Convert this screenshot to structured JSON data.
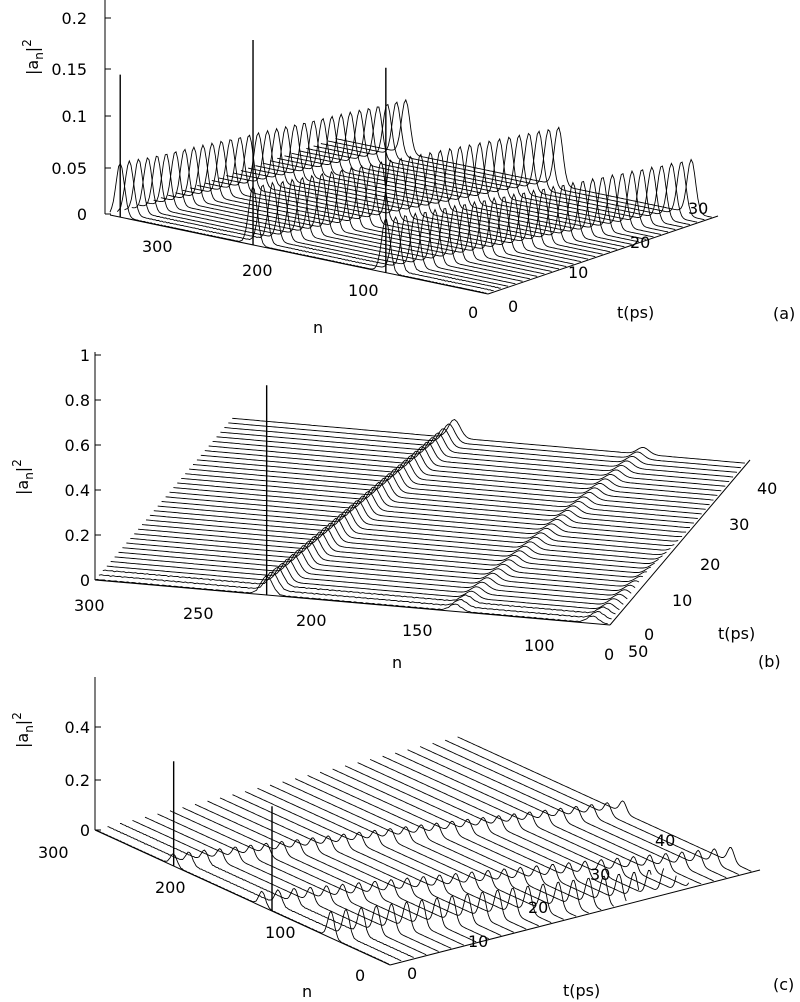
{
  "chart_data": [
    {
      "panel": "(a)",
      "type": "waterfall",
      "zlabel": "|a_n|^2",
      "nlabel": "n",
      "tlabel": "t(ps)",
      "z_ticks": [
        "0",
        "0.05",
        "0.1",
        "0.15",
        "0.2"
      ],
      "n_ticks": [
        "300",
        "200",
        "100",
        "0"
      ],
      "t_ticks": [
        "0",
        "10",
        "20",
        "30"
      ],
      "zlim": [
        0,
        0.22
      ],
      "nlim": [
        0,
        370
      ],
      "tlim": [
        0,
        38
      ],
      "num_traces": 32,
      "peak_ridges": [
        {
          "n_start": 360,
          "n_end": 300,
          "height": 0.06
        },
        {
          "n_start": 230,
          "n_end": 150,
          "height": 0.065
        },
        {
          "n_start": 100,
          "n_end": 20,
          "height": 0.06
        }
      ],
      "spikes_t0": [
        {
          "n": 360,
          "height": 0.16
        },
        {
          "n": 230,
          "height": 0.23
        },
        {
          "n": 100,
          "height": 0.23
        }
      ]
    },
    {
      "panel": "(b)",
      "type": "waterfall",
      "zlabel": "|a_n|^2",
      "nlabel": "n",
      "tlabel": "t(ps)",
      "z_ticks": [
        "0",
        "0.2",
        "0.4",
        "0.6",
        "0.8",
        "1"
      ],
      "n_ticks": [
        "300",
        "250",
        "200",
        "150",
        "100",
        "50",
        "0"
      ],
      "t_ticks": [
        "0",
        "10",
        "20",
        "30",
        "40"
      ],
      "zlim": [
        0,
        1
      ],
      "nlim": [
        0,
        300
      ],
      "tlim": [
        0,
        40
      ],
      "num_traces": 36,
      "peak_ridges": [
        {
          "n_start": 200,
          "n_end": 170,
          "height": 0.08
        },
        {
          "n_start": 90,
          "n_end": 60,
          "height": 0.03
        },
        {
          "n_start": 10,
          "n_end": -20,
          "height": 0.03
        }
      ],
      "spikes_t0": [
        {
          "n": 200,
          "height": 0.92
        }
      ]
    },
    {
      "panel": "(c)",
      "type": "waterfall",
      "zlabel": "|a_n|^2",
      "nlabel": "n",
      "tlabel": "t(ps)",
      "z_ticks": [
        "0",
        "0.2",
        "0.4"
      ],
      "n_ticks": [
        "300",
        "200",
        "100",
        "0"
      ],
      "t_ticks": [
        "0",
        "10",
        "20",
        "30",
        "40"
      ],
      "zlim": [
        0,
        0.55
      ],
      "nlim": [
        0,
        300
      ],
      "tlim": [
        0,
        40
      ],
      "num_traces": 30,
      "peak_ridges": [
        {
          "n_start": 220,
          "n_end": 130,
          "height": 0.04
        },
        {
          "n_start": 130,
          "n_end": 20,
          "height": 0.05
        },
        {
          "n_start": 60,
          "n_end": -20,
          "height": 0.09
        }
      ],
      "spikes_t0": [
        {
          "n": 220,
          "height": 0.36
        },
        {
          "n": 120,
          "height": 0.36
        }
      ]
    }
  ]
}
